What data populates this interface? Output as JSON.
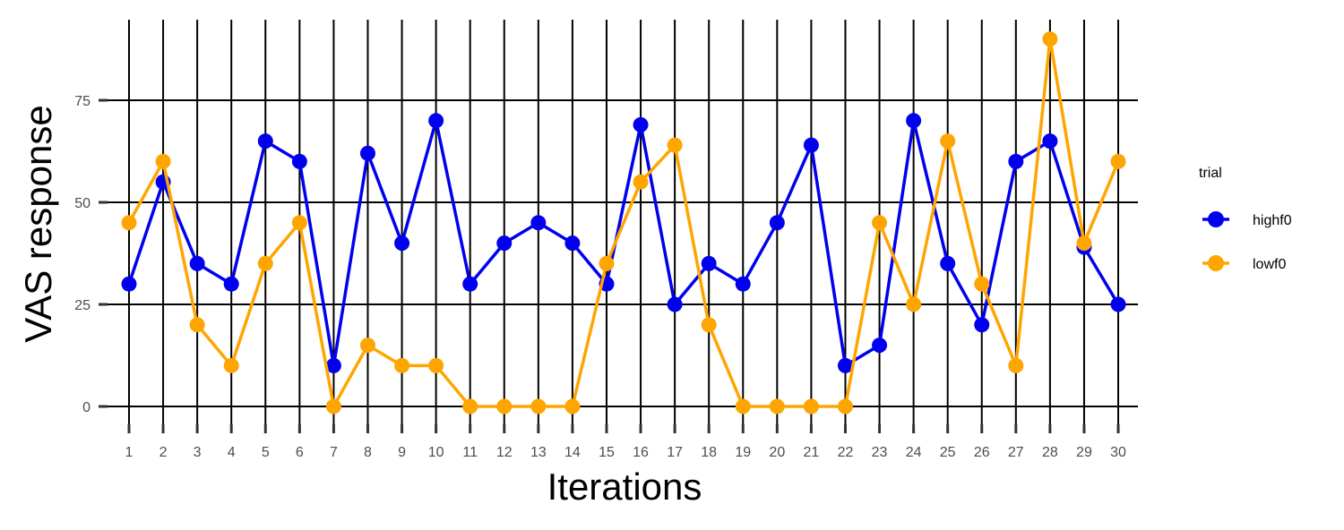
{
  "chart_data": {
    "type": "line",
    "title": "",
    "xlabel": "Iterations",
    "ylabel": "VAS response",
    "x": [
      1,
      2,
      3,
      4,
      5,
      6,
      7,
      8,
      9,
      10,
      11,
      12,
      13,
      14,
      15,
      16,
      17,
      18,
      19,
      20,
      21,
      22,
      23,
      24,
      25,
      26,
      27,
      28,
      29,
      30
    ],
    "x_tick_labels": [
      "1",
      "2",
      "3",
      "4",
      "5",
      "6",
      "7",
      "8",
      "9",
      "10",
      "11",
      "12",
      "13",
      "14",
      "15",
      "16",
      "17",
      "18",
      "19",
      "20",
      "21",
      "22",
      "23",
      "24",
      "25",
      "26",
      "27",
      "28",
      "29",
      "30"
    ],
    "y_ticks": [
      0,
      25,
      50,
      75
    ],
    "y_tick_labels": [
      "0",
      "25",
      "50",
      "75"
    ],
    "ylim": [
      -6,
      95
    ],
    "xlim": [
      0.5,
      31
    ],
    "grid": true,
    "legend": {
      "title": "trial",
      "placement": "right"
    },
    "series": [
      {
        "name": "highf0",
        "color": "#0000ee",
        "values": [
          30,
          55,
          35,
          30,
          65,
          60,
          10,
          62,
          40,
          70,
          30,
          40,
          45,
          40,
          30,
          69,
          25,
          35,
          30,
          45,
          64,
          10,
          15,
          70,
          35,
          20,
          60,
          65,
          39,
          25
        ]
      },
      {
        "name": "lowf0",
        "color": "#ffa500",
        "values": [
          45,
          60,
          20,
          10,
          35,
          45,
          0,
          15,
          10,
          10,
          0,
          0,
          0,
          0,
          35,
          55,
          64,
          20,
          0,
          0,
          0,
          0,
          45,
          25,
          65,
          30,
          10,
          90,
          40,
          60
        ]
      }
    ]
  }
}
